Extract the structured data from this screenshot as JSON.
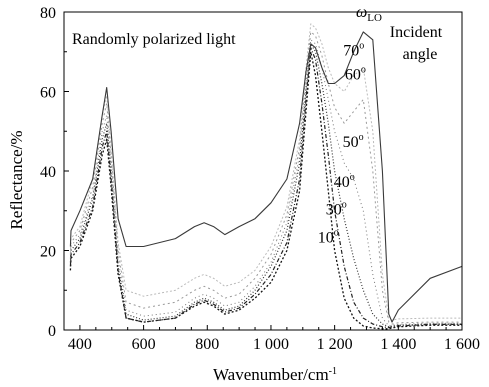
{
  "chart_data": {
    "type": "line",
    "title": "",
    "xlabel": "Wavenumber/cm",
    "xlabel_superscript": "-1",
    "ylabel": "Reflectance/%",
    "xlim": [
      350,
      1600
    ],
    "ylim": [
      0,
      80
    ],
    "x_ticks": [
      400,
      600,
      800,
      1000,
      1200,
      1400,
      1600
    ],
    "x_tick_labels": [
      "400",
      "600",
      "800",
      "1 000",
      "1 200",
      "1 400",
      "1 600"
    ],
    "y_ticks": [
      0,
      20,
      40,
      60,
      80
    ],
    "y_tick_labels": [
      "0",
      "20",
      "40",
      "60",
      "80"
    ],
    "grid": false,
    "legend": "none",
    "annotations": {
      "polarization_note": "Randomly polarized light",
      "omega_symbol": "ω",
      "omega_subscript": "LO",
      "angle_title_line1": "Incident",
      "angle_title_line2": "angle",
      "degree_symbol": "o"
    },
    "series": [
      {
        "name": "10",
        "color": "#111111",
        "dash": "2,2",
        "width": 1.3,
        "x": [
          370,
          372,
          400,
          440,
          470,
          484,
          498,
          520,
          545,
          600,
          700,
          760,
          790,
          820,
          855,
          900,
          950,
          1000,
          1050,
          1090,
          1110,
          1125,
          1140,
          1160,
          1180,
          1200,
          1230,
          1260,
          1290,
          1320,
          1350,
          1370,
          1380,
          1400,
          1500,
          1600
        ],
        "y": [
          15,
          18,
          21,
          30,
          44,
          48,
          36,
          14,
          3,
          2,
          3,
          6,
          7,
          6,
          4,
          5,
          8,
          12,
          20,
          35,
          55,
          70,
          64,
          50,
          35,
          20,
          8,
          3,
          1,
          0.5,
          0.3,
          0.3,
          0.5,
          0.8,
          1.2,
          1.2
        ]
      },
      {
        "name": "30",
        "color": "#222222",
        "dash": "4,2,1,2",
        "width": 1.2,
        "x": [
          370,
          372,
          400,
          440,
          470,
          484,
          498,
          520,
          545,
          600,
          700,
          760,
          790,
          820,
          855,
          900,
          950,
          1000,
          1050,
          1090,
          1110,
          1125,
          1140,
          1160,
          1180,
          1200,
          1230,
          1260,
          1290,
          1320,
          1350,
          1370,
          1380,
          1400,
          1500,
          1600
        ],
        "y": [
          16,
          19,
          22,
          31,
          46,
          50,
          38,
          15,
          3,
          2,
          3,
          6.5,
          7.5,
          6.5,
          4.5,
          5.5,
          9,
          14,
          22,
          38,
          58,
          71,
          68,
          57,
          44,
          30,
          16,
          7,
          3,
          1.5,
          0.8,
          0.6,
          0.8,
          1,
          1.4,
          1.4
        ]
      },
      {
        "name": "40",
        "color": "#333333",
        "dash": "1,2",
        "width": 1.2,
        "x": [
          370,
          372,
          400,
          440,
          470,
          484,
          498,
          520,
          545,
          600,
          700,
          760,
          790,
          820,
          855,
          900,
          950,
          1000,
          1050,
          1090,
          1110,
          1125,
          1140,
          1160,
          1180,
          1200,
          1230,
          1260,
          1290,
          1320,
          1350,
          1370,
          1380,
          1400,
          1500,
          1600
        ],
        "y": [
          17,
          20,
          23,
          33,
          48,
          52,
          40,
          16,
          4,
          2.5,
          3.5,
          7,
          8,
          7,
          5,
          6,
          10,
          16,
          25,
          42,
          60,
          72,
          70,
          62,
          52,
          40,
          28,
          18,
          10,
          4,
          1.5,
          0.8,
          1,
          1.2,
          1.5,
          1.5
        ]
      },
      {
        "name": "50",
        "color": "#777777",
        "dash": "1,3",
        "width": 1.0,
        "x": [
          370,
          372,
          400,
          440,
          470,
          484,
          498,
          520,
          545,
          600,
          700,
          760,
          790,
          820,
          855,
          900,
          950,
          1000,
          1050,
          1090,
          1110,
          1125,
          1140,
          1160,
          1180,
          1200,
          1230,
          1260,
          1290,
          1320,
          1350,
          1370,
          1380,
          1400,
          1500,
          1600
        ],
        "y": [
          18,
          21,
          24,
          34,
          50,
          54,
          42,
          18,
          5,
          3.5,
          4.5,
          8,
          9,
          8,
          6,
          7,
          11,
          17,
          27,
          44,
          62,
          73,
          72,
          66,
          58,
          50,
          42,
          38,
          30,
          14,
          3,
          1,
          1.2,
          1.4,
          1.7,
          1.7
        ]
      },
      {
        "name": "60",
        "color": "#999999",
        "dash": "2,3",
        "width": 1.0,
        "x": [
          370,
          372,
          400,
          440,
          470,
          484,
          498,
          520,
          545,
          600,
          700,
          760,
          790,
          820,
          855,
          900,
          950,
          1000,
          1050,
          1090,
          1110,
          1125,
          1140,
          1160,
          1180,
          1200,
          1230,
          1260,
          1290,
          1320,
          1350,
          1370,
          1380,
          1400,
          1500,
          1600
        ],
        "y": [
          19,
          22,
          25,
          36,
          52,
          57,
          44,
          20,
          7,
          5.5,
          7,
          10,
          11,
          10,
          8,
          9,
          13,
          19,
          29,
          46,
          64,
          75,
          74,
          69,
          62,
          56,
          52,
          55,
          58,
          40,
          10,
          2,
          1.5,
          1.8,
          2,
          2
        ]
      },
      {
        "name": "70",
        "color": "#bbbbbb",
        "dash": "2,2",
        "width": 1.0,
        "x": [
          370,
          372,
          400,
          440,
          470,
          484,
          498,
          520,
          545,
          600,
          700,
          760,
          790,
          820,
          855,
          900,
          950,
          1000,
          1050,
          1090,
          1110,
          1125,
          1140,
          1160,
          1180,
          1200,
          1230,
          1260,
          1290,
          1320,
          1350,
          1370,
          1380,
          1400,
          1500,
          1600
        ],
        "y": [
          19.5,
          23,
          26,
          38,
          54,
          59,
          46,
          22,
          10,
          8.5,
          10,
          13,
          14,
          13,
          11,
          12,
          15,
          21,
          31,
          48,
          66,
          77,
          76,
          72,
          66,
          62,
          60,
          64,
          66,
          50,
          14,
          3,
          2.5,
          2.8,
          3,
          3
        ]
      },
      {
        "name": "randomly-polarized",
        "color": "#3a3a3a",
        "dash": "",
        "width": 1.1,
        "x": [
          370,
          372,
          400,
          440,
          470,
          484,
          498,
          520,
          545,
          600,
          700,
          760,
          790,
          820,
          855,
          900,
          950,
          1000,
          1050,
          1090,
          1110,
          1125,
          1140,
          1160,
          1180,
          1200,
          1230,
          1260,
          1290,
          1320,
          1350,
          1370,
          1380,
          1400,
          1500,
          1600
        ],
        "y": [
          21,
          25,
          30,
          38,
          54,
          61,
          50,
          28,
          21,
          21,
          23,
          26,
          27,
          26,
          24,
          26,
          28,
          32,
          38,
          52,
          65,
          72,
          71,
          66,
          62,
          62,
          64,
          70,
          75,
          73,
          40,
          4,
          2,
          5,
          13,
          16
        ]
      }
    ],
    "curve_labels": [
      {
        "text": "70",
        "x": 1260,
        "y": 69
      },
      {
        "text": "60",
        "x": 1265,
        "y": 63
      },
      {
        "text": "50",
        "x": 1258,
        "y": 46
      },
      {
        "text": "40",
        "x": 1230,
        "y": 36
      },
      {
        "text": "30",
        "x": 1205,
        "y": 29
      },
      {
        "text": "10",
        "x": 1180,
        "y": 22
      }
    ]
  }
}
